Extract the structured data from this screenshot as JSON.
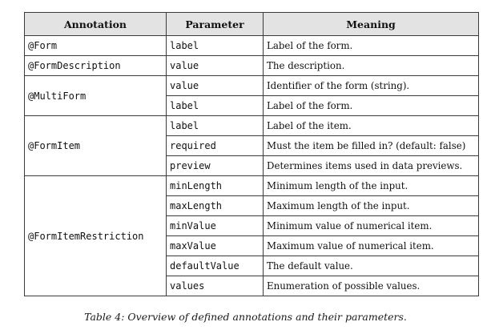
{
  "table": {
    "headers": [
      "Annotation",
      "Parameter",
      "Meaning"
    ],
    "rows": [
      {
        "annotation": "@Form",
        "params": [
          {
            "name": "label",
            "meaning": "Label of the form."
          }
        ]
      },
      {
        "annotation": "@FormDescription",
        "params": [
          {
            "name": "value",
            "meaning": "The description."
          }
        ]
      },
      {
        "annotation": "@MultiForm",
        "params": [
          {
            "name": "value",
            "meaning": "Identifier of the form (string)."
          },
          {
            "name": "label",
            "meaning": "Label of the form."
          }
        ]
      },
      {
        "annotation": "@FormItem",
        "params": [
          {
            "name": "label",
            "meaning": "Label of the item."
          },
          {
            "name": "required",
            "meaning": "Must the item be filled in? (default: false)"
          },
          {
            "name": "preview",
            "meaning": "Determines items used in data previews."
          }
        ]
      },
      {
        "annotation": "@FormItemRestriction",
        "params": [
          {
            "name": "minLength",
            "meaning": "Minimum length of the input."
          },
          {
            "name": "maxLength",
            "meaning": "Maximum length of the input."
          },
          {
            "name": "minValue",
            "meaning": "Minimum value of numerical item."
          },
          {
            "name": "maxValue",
            "meaning": "Maximum value of numerical item."
          },
          {
            "name": "defaultValue",
            "meaning": "The default value."
          },
          {
            "name": "values",
            "meaning": "Enumeration of possible values."
          }
        ]
      }
    ]
  },
  "caption": "Table 4: Overview of defined annotations and their parameters."
}
